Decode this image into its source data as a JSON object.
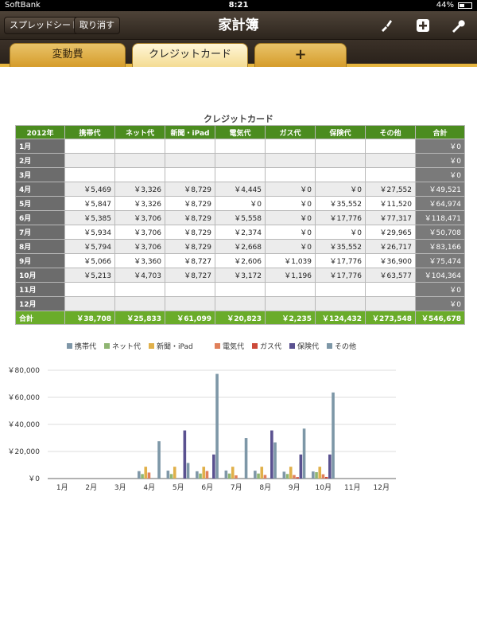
{
  "status": {
    "carrier": "SoftBank",
    "time": "8:21",
    "battery": "44%"
  },
  "nav": {
    "spreadsheet_label": "スプレッドシート",
    "undo_label": "取り消す",
    "title": "家計簿"
  },
  "tabs": [
    {
      "label": "変動費"
    },
    {
      "label": "クレジットカード"
    },
    {
      "label": "+"
    }
  ],
  "table": {
    "title": "クレジットカード",
    "headers": [
      "2012年",
      "携帯代",
      "ネット代",
      "新聞・iPad",
      "電気代",
      "ガス代",
      "保険代",
      "その他",
      "合計"
    ],
    "rows": [
      [
        "1月",
        "",
        "",
        "",
        "",
        "",
        "",
        "",
        "￥0"
      ],
      [
        "2月",
        "",
        "",
        "",
        "",
        "",
        "",
        "",
        "￥0"
      ],
      [
        "3月",
        "",
        "",
        "",
        "",
        "",
        "",
        "",
        "￥0"
      ],
      [
        "4月",
        "￥5,469",
        "￥3,326",
        "￥8,729",
        "￥4,445",
        "￥0",
        "￥0",
        "￥27,552",
        "￥49,521"
      ],
      [
        "5月",
        "￥5,847",
        "￥3,326",
        "￥8,729",
        "￥0",
        "￥0",
        "￥35,552",
        "￥11,520",
        "￥64,974"
      ],
      [
        "6月",
        "￥5,385",
        "￥3,706",
        "￥8,729",
        "￥5,558",
        "￥0",
        "￥17,776",
        "￥77,317",
        "￥118,471"
      ],
      [
        "7月",
        "￥5,934",
        "￥3,706",
        "￥8,729",
        "￥2,374",
        "￥0",
        "￥0",
        "￥29,965",
        "￥50,708"
      ],
      [
        "8月",
        "￥5,794",
        "￥3,706",
        "￥8,729",
        "￥2,668",
        "￥0",
        "￥35,552",
        "￥26,717",
        "￥83,166"
      ],
      [
        "9月",
        "￥5,066",
        "￥3,360",
        "￥8,727",
        "￥2,606",
        "￥1,039",
        "￥17,776",
        "￥36,900",
        "￥75,474"
      ],
      [
        "10月",
        "￥5,213",
        "￥4,703",
        "￥8,727",
        "￥3,172",
        "￥1,196",
        "￥17,776",
        "￥63,577",
        "￥104,364"
      ],
      [
        "11月",
        "",
        "",
        "",
        "",
        "",
        "",
        "",
        "￥0"
      ],
      [
        "12月",
        "",
        "",
        "",
        "",
        "",
        "",
        "",
        "￥0"
      ]
    ],
    "totals": [
      "合計",
      "￥38,708",
      "￥25,833",
      "￥61,099",
      "￥20,823",
      "￥2,235",
      "￥124,432",
      "￥273,548",
      "￥546,678"
    ]
  },
  "chart_data": {
    "type": "bar",
    "categories": [
      "1月",
      "2月",
      "3月",
      "4月",
      "5月",
      "6月",
      "7月",
      "8月",
      "9月",
      "10月",
      "11月",
      "12月"
    ],
    "series": [
      {
        "name": "携帯代",
        "color": "#7f97a8",
        "values": [
          0,
          0,
          0,
          5469,
          5847,
          5385,
          5934,
          5794,
          5066,
          5213,
          0,
          0
        ]
      },
      {
        "name": "ネット代",
        "color": "#8fb572",
        "values": [
          0,
          0,
          0,
          3326,
          3326,
          3706,
          3706,
          3706,
          3360,
          4703,
          0,
          0
        ]
      },
      {
        "name": "新聞・iPad",
        "color": "#e0b04a",
        "values": [
          0,
          0,
          0,
          8729,
          8729,
          8729,
          8729,
          8729,
          8727,
          8727,
          0,
          0
        ]
      },
      {
        "name": "電気代",
        "color": "#e0805a",
        "values": [
          0,
          0,
          0,
          4445,
          0,
          5558,
          2374,
          2668,
          2606,
          3172,
          0,
          0
        ]
      },
      {
        "name": "ガス代",
        "color": "#cc4a3a",
        "values": [
          0,
          0,
          0,
          0,
          0,
          0,
          0,
          0,
          1039,
          1196,
          0,
          0
        ]
      },
      {
        "name": "保険代",
        "color": "#5a5190",
        "values": [
          0,
          0,
          0,
          0,
          35552,
          17776,
          0,
          35552,
          17776,
          17776,
          0,
          0
        ]
      },
      {
        "name": "その他",
        "color": "#7d97a7",
        "values": [
          0,
          0,
          0,
          27552,
          11520,
          77317,
          29965,
          26717,
          36900,
          63577,
          0,
          0
        ]
      }
    ],
    "y_ticks": [
      "￥0",
      "￥20,000",
      "￥40,000",
      "￥60,000",
      "￥80,000"
    ],
    "ylim": [
      0,
      80000
    ],
    "legend": "top"
  }
}
